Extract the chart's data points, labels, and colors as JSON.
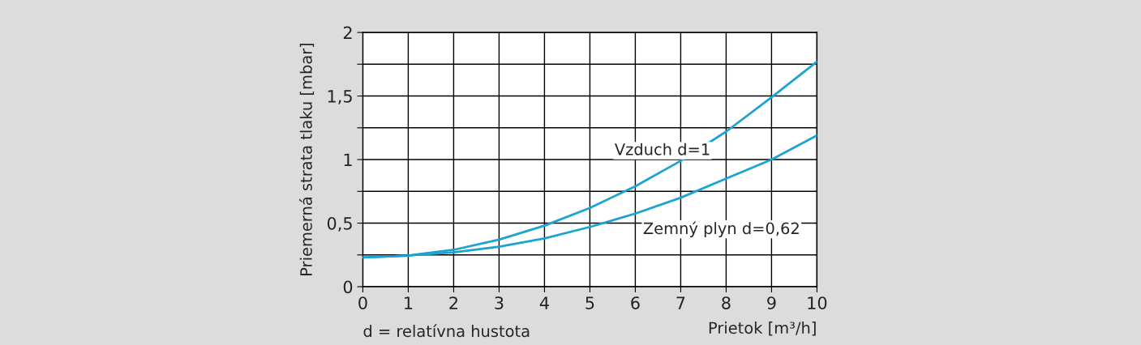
{
  "chart_data": {
    "type": "line",
    "xlabel": "Prietok [m³/h]",
    "ylabel": "Priemerná strata tlaku [mbar]",
    "annotations": [
      "d = relatívna hustota"
    ],
    "x": [
      0,
      1,
      2,
      3,
      4,
      5,
      6,
      7,
      8,
      9,
      10
    ],
    "series": [
      {
        "name": "Vzduch d=1",
        "color": "#1ba3d1",
        "values": [
          0.23,
          0.245,
          0.29,
          0.37,
          0.48,
          0.62,
          0.79,
          0.99,
          1.22,
          1.49,
          1.77
        ]
      },
      {
        "name": "Zemný plyn d=0,62",
        "color": "#1ba3d1",
        "values": [
          0.23,
          0.245,
          0.27,
          0.315,
          0.38,
          0.47,
          0.575,
          0.7,
          0.85,
          1.0,
          1.19
        ]
      }
    ],
    "xlim": [
      0,
      10
    ],
    "ylim": [
      0,
      2
    ],
    "xticks": [
      0,
      1,
      2,
      3,
      4,
      5,
      6,
      7,
      8,
      9,
      10
    ],
    "yticks": [
      0,
      {
        "value": 0.25,
        "label": null
      },
      {
        "value": 0.5,
        "label": "0,5"
      },
      {
        "value": 0.75,
        "label": null
      },
      1,
      {
        "value": 1.25,
        "label": null
      },
      {
        "value": 1.5,
        "label": "1,5"
      },
      {
        "value": 1.75,
        "label": null
      },
      2
    ],
    "grid": true,
    "legend": false,
    "marker": "none",
    "line_style": "solid"
  }
}
